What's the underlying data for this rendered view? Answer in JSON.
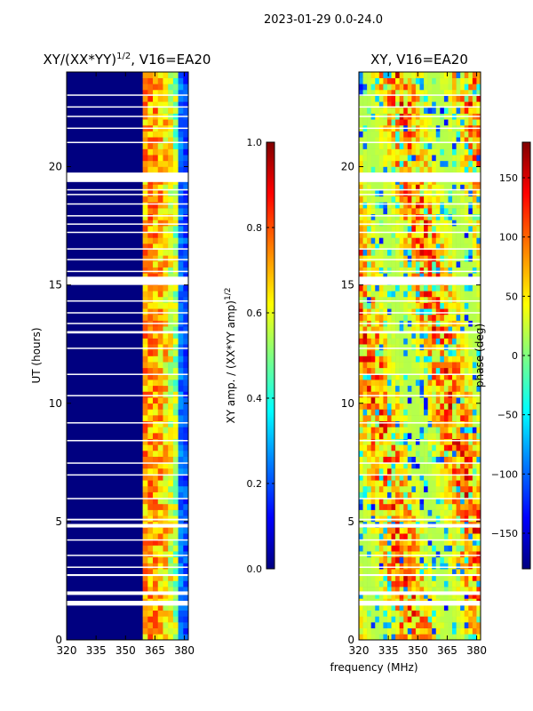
{
  "figure_title": "2023-01-29 0.0-24.0",
  "shared_xlabel": "frequency (MHz)",
  "colors": {
    "background": "#ffffff",
    "panel_bg": "#00008f",
    "jet": [
      "#000080",
      "#0000ff",
      "#0080ff",
      "#00ffff",
      "#80ff80",
      "#ffff00",
      "#ff8000",
      "#ff0000",
      "#800000"
    ]
  },
  "chart_data": [
    {
      "type": "heatmap",
      "title": "XY/(XX*YY)",
      "title_superscript": "1/2",
      "title_suffix": ", V16=EA20",
      "ylabel": "UT (hours)",
      "xlim": [
        320,
        382
      ],
      "ylim": [
        0,
        24
      ],
      "xticks": [
        "320",
        "335",
        "350",
        "365",
        "380"
      ],
      "xtick_values": [
        320,
        335,
        350,
        365,
        380
      ],
      "yticks": [
        "0",
        "5",
        "10",
        "15",
        "20"
      ],
      "ytick_values": [
        0,
        5,
        10,
        15,
        20
      ],
      "colorbar": {
        "label": "XY amp. / (XX*YY amp)",
        "label_superscript": "1/2",
        "range": [
          0.0,
          1.0
        ],
        "ticks": [
          "0.0",
          "0.2",
          "0.4",
          "0.6",
          "0.8",
          "1.0"
        ],
        "tick_values": [
          0.0,
          0.2,
          0.4,
          0.6,
          0.8,
          1.0
        ]
      }
    },
    {
      "type": "heatmap",
      "title": "XY, V16=EA20",
      "xlim": [
        320,
        382
      ],
      "ylim": [
        0,
        24
      ],
      "xticks": [
        "320",
        "335",
        "350",
        "365",
        "380"
      ],
      "xtick_values": [
        320,
        335,
        350,
        365,
        380
      ],
      "yticks": [
        "0",
        "5",
        "10",
        "15",
        "20"
      ],
      "ytick_values": [
        0,
        5,
        10,
        15,
        20
      ],
      "colorbar": {
        "label": "phase (deg)",
        "range": [
          -180,
          180
        ],
        "ticks": [
          "−150",
          "−100",
          "−50",
          "0",
          "50",
          "100",
          "150"
        ],
        "tick_values": [
          -150,
          -100,
          -50,
          0,
          50,
          100,
          150
        ]
      }
    }
  ],
  "data_gaps_hours": [
    [
      1.45,
      1.65
    ],
    [
      1.9,
      2.05
    ],
    [
      2.7,
      2.78
    ],
    [
      3.05,
      3.1
    ],
    [
      3.55,
      3.6
    ],
    [
      4.2,
      4.25
    ],
    [
      4.75,
      4.9
    ],
    [
      5.05,
      5.12
    ],
    [
      5.95,
      6.0
    ],
    [
      6.95,
      7.0
    ],
    [
      7.45,
      7.5
    ],
    [
      8.4,
      8.45
    ],
    [
      9.15,
      9.2
    ],
    [
      10.3,
      10.35
    ],
    [
      11.2,
      11.25
    ],
    [
      12.3,
      12.35
    ],
    [
      12.95,
      13.05
    ],
    [
      13.35,
      13.4
    ],
    [
      13.8,
      13.85
    ],
    [
      14.3,
      14.35
    ],
    [
      15.0,
      15.35
    ],
    [
      15.55,
      15.6
    ],
    [
      16.05,
      16.1
    ],
    [
      16.5,
      16.55
    ],
    [
      17.2,
      17.25
    ],
    [
      17.55,
      17.6
    ],
    [
      17.9,
      17.95
    ],
    [
      18.4,
      18.45
    ],
    [
      18.8,
      18.85
    ],
    [
      19.0,
      19.05
    ],
    [
      19.35,
      19.75
    ],
    [
      21.0,
      21.05
    ],
    [
      21.6,
      21.65
    ],
    [
      22.1,
      22.15
    ],
    [
      22.5,
      22.55
    ],
    [
      23.0,
      23.05
    ]
  ]
}
